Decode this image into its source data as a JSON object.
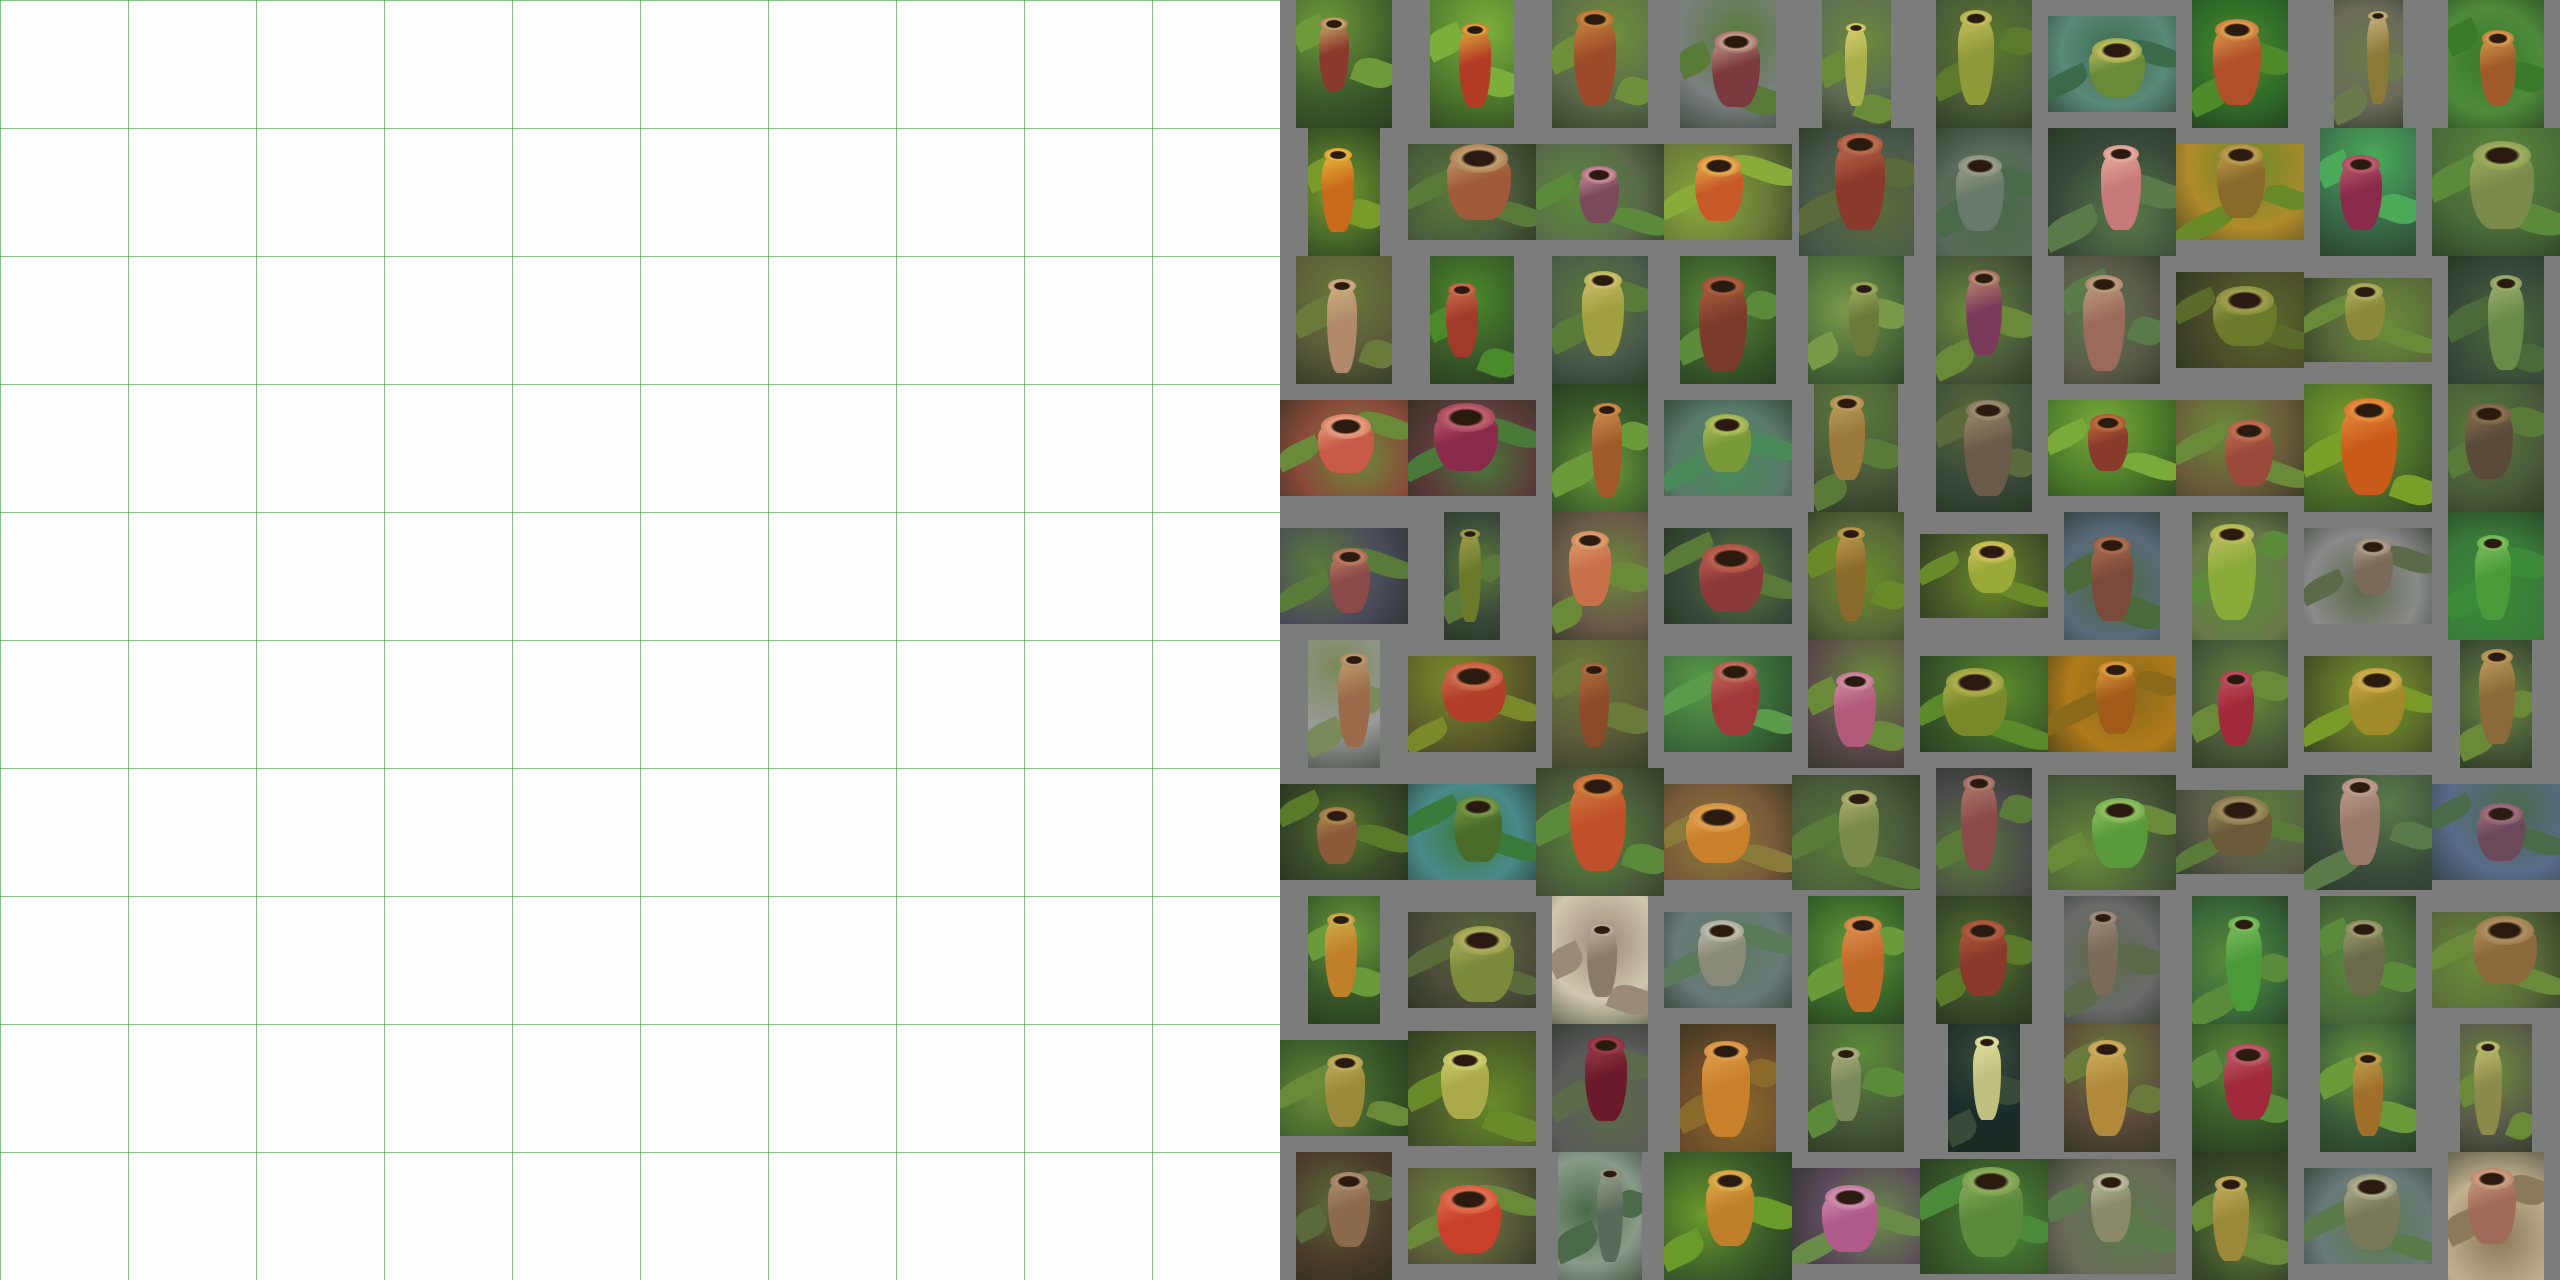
{
  "image": {
    "left_panel": "blank-white-grid",
    "grid_color": "#5aa35a",
    "right_panel": "pitcher-plant-photo-collage",
    "collage_background": "#7c7c7c"
  },
  "photos": [
    {
      "w": 0.75,
      "h": 1.0,
      "bg": "#3d5a2a",
      "p": "#8a3a2a",
      "m": "#c9b070",
      "l": "#6e9a3a",
      "ax": "c",
      "ay": "c"
    },
    {
      "w": 0.66,
      "h": 1.0,
      "bg": "#4f7a2e",
      "p": "#b23b25",
      "m": "#e0b040",
      "l": "#7cae3c",
      "ax": "c",
      "ay": "c"
    },
    {
      "w": 0.75,
      "h": 1.0,
      "bg": "#5b6b4a",
      "p": "#9c4b2a",
      "m": "#c98a40",
      "l": "#6f8f3a",
      "ax": "c",
      "ay": "c"
    },
    {
      "w": 0.75,
      "h": 1.0,
      "bg": "#7a8080",
      "p": "#7b3a40",
      "m": "#c9a090",
      "l": "#5a7a3a",
      "ax": "c",
      "ay": "c"
    },
    {
      "w": 0.54,
      "h": 1.0,
      "bg": "#5e6b55",
      "p": "#a7b04a",
      "m": "#d8d070",
      "l": "#6b8a3a",
      "ax": "c",
      "ay": "c"
    },
    {
      "w": 0.75,
      "h": 1.0,
      "bg": "#4a5b38",
      "p": "#8e9a3a",
      "m": "#c8c060",
      "l": "#5d7a2c",
      "ax": "c",
      "ay": "c"
    },
    {
      "w": 1.0,
      "h": 0.75,
      "bg": "#5a8a7a",
      "p": "#6a8a3a",
      "m": "#c0c060",
      "l": "#3b6a4a",
      "ax": "c",
      "ay": "c"
    },
    {
      "w": 0.75,
      "h": 1.0,
      "bg": "#2f6a2a",
      "p": "#b0502a",
      "m": "#e0a050",
      "l": "#4e8a2a",
      "ax": "c",
      "ay": "c"
    },
    {
      "w": 0.54,
      "h": 1.0,
      "bg": "#6a6a5a",
      "p": "#8a7a3a",
      "m": "#c8b080",
      "l": "#6a7a4a",
      "ax": "c",
      "ay": "c"
    },
    {
      "w": 0.75,
      "h": 1.0,
      "bg": "#4e8a3a",
      "p": "#a05a2a",
      "m": "#d8a050",
      "l": "#3a7a2a",
      "ax": "c",
      "ay": "c"
    },
    {
      "w": 0.56,
      "h": 1.0,
      "bg": "#4a6a2a",
      "p": "#c86a1a",
      "m": "#e8c040",
      "l": "#7a9a2a",
      "ax": "c",
      "ay": "c"
    },
    {
      "w": 1.0,
      "h": 0.75,
      "bg": "#4a5a3a",
      "p": "#a05a3a",
      "m": "#c0a070",
      "l": "#5a7a3a",
      "ax": "c",
      "ay": "c"
    },
    {
      "w": 1.0,
      "h": 0.75,
      "bg": "#5a6a4a",
      "p": "#7a4a5a",
      "m": "#d090a0",
      "l": "#5a8a3a",
      "ax": "c",
      "ay": "c"
    },
    {
      "w": 1.0,
      "h": 0.75,
      "bg": "#6a7a3a",
      "p": "#c85a2a",
      "m": "#e8b050",
      "l": "#8aaa3a",
      "ax": "c",
      "ay": "c"
    },
    {
      "w": 0.9,
      "h": 1.0,
      "bg": "#4a5a4a",
      "p": "#8a3a2a",
      "m": "#c07050",
      "l": "#5a6a3a",
      "ax": "c",
      "ay": "c"
    },
    {
      "w": 0.75,
      "h": 1.0,
      "bg": "#5a6a5a",
      "p": "#6a7a6a",
      "m": "#9aa090",
      "l": "#4a6a4a",
      "ax": "c",
      "ay": "c"
    },
    {
      "w": 1.0,
      "h": 1.0,
      "bg": "#3a4a3a",
      "p": "#c87a7a",
      "m": "#e8b0a0",
      "l": "#5a7a4a",
      "ax": "c",
      "ay": "c"
    },
    {
      "w": 1.0,
      "h": 0.75,
      "bg": "#b08a2a",
      "p": "#8a6a2a",
      "m": "#c0a050",
      "l": "#6a8a2a",
      "ax": "c",
      "ay": "c"
    },
    {
      "w": 0.75,
      "h": 1.0,
      "bg": "#3a6a4a",
      "p": "#8a2a4a",
      "m": "#c06070",
      "l": "#4aaa5a",
      "ax": "c",
      "ay": "c"
    },
    {
      "w": 1.0,
      "h": 1.0,
      "bg": "#4a6a3a",
      "p": "#7a8a4a",
      "m": "#a0b060",
      "l": "#5a8a3a",
      "ax": "c",
      "ay": "c"
    },
    {
      "w": 0.75,
      "h": 1.0,
      "bg": "#5a5a3a",
      "p": "#b08a6a",
      "m": "#d0b080",
      "l": "#6a7a3a",
      "ax": "c",
      "ay": "c"
    },
    {
      "w": 0.66,
      "h": 1.0,
      "bg": "#3a5a2a",
      "p": "#a03a2a",
      "m": "#d07050",
      "l": "#4a8a2a",
      "ax": "c",
      "ay": "c"
    },
    {
      "w": 0.75,
      "h": 1.0,
      "bg": "#4a5a4a",
      "p": "#a0a040",
      "m": "#d0c070",
      "l": "#5a7a3a",
      "ax": "c",
      "ay": "c"
    },
    {
      "w": 0.75,
      "h": 1.0,
      "bg": "#3a5a2a",
      "p": "#7a3a2a",
      "m": "#b06040",
      "l": "#5a8a3a",
      "ax": "c",
      "ay": "c"
    },
    {
      "w": 0.75,
      "h": 1.0,
      "bg": "#4a6a3a",
      "p": "#6a7a3a",
      "m": "#a0b060",
      "l": "#7a9a4a",
      "ax": "c",
      "ay": "c"
    },
    {
      "w": 0.75,
      "h": 1.0,
      "bg": "#4a5a3a",
      "p": "#7a3a5a",
      "m": "#c09070",
      "l": "#6a8a3a",
      "ax": "c",
      "ay": "c"
    },
    {
      "w": 0.75,
      "h": 1.0,
      "bg": "#5a5a4a",
      "p": "#9a6a5a",
      "m": "#c0a080",
      "l": "#5a7a4a",
      "ax": "c",
      "ay": "c"
    },
    {
      "w": 1.0,
      "h": 0.75,
      "bg": "#4a4a2a",
      "p": "#6a7a2a",
      "m": "#a0a050",
      "l": "#5a6a2a",
      "ax": "c",
      "ay": "c"
    },
    {
      "w": 1.0,
      "h": 0.66,
      "bg": "#5a6a3a",
      "p": "#8a8a3a",
      "m": "#b0b060",
      "l": "#6a8a3a",
      "ax": "c",
      "ay": "c"
    },
    {
      "w": 0.75,
      "h": 1.0,
      "bg": "#3a4a3a",
      "p": "#6a8a4a",
      "m": "#a0b070",
      "l": "#4a6a3a",
      "ax": "c",
      "ay": "c"
    },
    {
      "w": 1.0,
      "h": 0.75,
      "bg": "#8a4a3a",
      "p": "#c85a4a",
      "m": "#e8a080",
      "l": "#6a8a3a",
      "ax": "c",
      "ay": "c"
    },
    {
      "w": 1.0,
      "h": 0.75,
      "bg": "#5a3a3a",
      "p": "#8a2a4a",
      "m": "#c06070",
      "l": "#4a7a3a",
      "ax": "c",
      "ay": "c"
    },
    {
      "w": 0.75,
      "h": 1.0,
      "bg": "#3a5a2a",
      "p": "#a05a2a",
      "m": "#d09050",
      "l": "#6a9a3a",
      "ax": "c",
      "ay": "c"
    },
    {
      "w": 1.0,
      "h": 0.75,
      "bg": "#5a7a6a",
      "p": "#7a9a3a",
      "m": "#b0c060",
      "l": "#4a8a5a",
      "ax": "c",
      "ay": "c"
    },
    {
      "w": 0.66,
      "h": 1.0,
      "bg": "#4a5a3a",
      "p": "#9a7a3a",
      "m": "#c0a060",
      "l": "#5a7a3a",
      "ax": "c",
      "ay": "c"
    },
    {
      "w": 0.75,
      "h": 1.0,
      "bg": "#3a4a3a",
      "p": "#6a5a4a",
      "m": "#a09070",
      "l": "#5a6a3a",
      "ax": "c",
      "ay": "c"
    },
    {
      "w": 1.0,
      "h": 0.75,
      "bg": "#4a7a2a",
      "p": "#8a3a2a",
      "m": "#c07040",
      "l": "#7aaa3a",
      "ax": "c",
      "ay": "c"
    },
    {
      "w": 1.0,
      "h": 0.75,
      "bg": "#6a5a3a",
      "p": "#9a4a3a",
      "m": "#c07050",
      "l": "#6a8a3a",
      "ax": "c",
      "ay": "c"
    },
    {
      "w": 1.0,
      "h": 1.0,
      "bg": "#4a6a2a",
      "p": "#c85a1a",
      "m": "#e89040",
      "l": "#7aa02a",
      "ax": "c",
      "ay": "c"
    },
    {
      "w": 0.75,
      "h": 1.0,
      "bg": "#4a5a3a",
      "p": "#5a4a3a",
      "m": "#8a7050",
      "l": "#5a7a3a",
      "ax": "c",
      "ay": "c"
    },
    {
      "w": 1.0,
      "h": 0.75,
      "bg": "#4a4a5a",
      "p": "#8a4a4a",
      "m": "#c08060",
      "l": "#5a7a3a",
      "ax": "c",
      "ay": "c"
    },
    {
      "w": 0.44,
      "h": 1.0,
      "bg": "#3a4a3a",
      "p": "#6a7a2a",
      "m": "#a0a050",
      "l": "#5a7a3a",
      "ax": "c",
      "ay": "c"
    },
    {
      "w": 0.75,
      "h": 1.0,
      "bg": "#6a5a4a",
      "p": "#c8704a",
      "m": "#e0a070",
      "l": "#6a8a3a",
      "ax": "c",
      "ay": "c"
    },
    {
      "w": 1.0,
      "h": 0.75,
      "bg": "#3a4a3a",
      "p": "#8a3a3a",
      "m": "#c06050",
      "l": "#5a7a3a",
      "ax": "c",
      "ay": "c"
    },
    {
      "w": 0.75,
      "h": 1.0,
      "bg": "#5a6a3a",
      "p": "#8a6a2a",
      "m": "#c0a050",
      "l": "#6a8a2a",
      "ax": "c",
      "ay": "c"
    },
    {
      "w": 1.0,
      "h": 0.66,
      "bg": "#4a5a2a",
      "p": "#9aaa3a",
      "m": "#d0c060",
      "l": "#6a8a2a",
      "ax": "c",
      "ay": "c"
    },
    {
      "w": 0.75,
      "h": 1.0,
      "bg": "#5a6a7a",
      "p": "#7a4a3a",
      "m": "#b07050",
      "l": "#4a6a3a",
      "ax": "c",
      "ay": "c"
    },
    {
      "w": 0.75,
      "h": 1.0,
      "bg": "#6a7a4a",
      "p": "#8aaa3a",
      "m": "#c0c060",
      "l": "#5a8a3a",
      "ax": "c",
      "ay": "c"
    },
    {
      "w": 1.0,
      "h": 0.75,
      "bg": "#8a8a8a",
      "p": "#7a6a5a",
      "m": "#b0a090",
      "l": "#5a6a4a",
      "ax": "c",
      "ay": "c"
    },
    {
      "w": 0.75,
      "h": 1.0,
      "bg": "#3a7a3a",
      "p": "#4a9a3a",
      "m": "#80c060",
      "l": "#3a8a3a",
      "ax": "c",
      "ay": "c"
    },
    {
      "w": 0.56,
      "h": 1.0,
      "bg": "#9a9a9a",
      "p": "#9a6a4a",
      "m": "#c0a070",
      "l": "#7a8a5a",
      "ax": "c",
      "ay": "c"
    },
    {
      "w": 1.0,
      "h": 0.75,
      "bg": "#5a5a2a",
      "p": "#b0402a",
      "m": "#d07050",
      "l": "#7a8a2a",
      "ax": "c",
      "ay": "c"
    },
    {
      "w": 0.75,
      "h": 1.0,
      "bg": "#5a5a3a",
      "p": "#8a4a2a",
      "m": "#b07040",
      "l": "#6a7a3a",
      "ax": "c",
      "ay": "c"
    },
    {
      "w": 1.0,
      "h": 0.75,
      "bg": "#3a6a3a",
      "p": "#a03a3a",
      "m": "#c07060",
      "l": "#5a9a4a",
      "ax": "c",
      "ay": "c"
    },
    {
      "w": 0.75,
      "h": 1.0,
      "bg": "#5a4a4a",
      "p": "#b05a7a",
      "m": "#d090a0",
      "l": "#6a8a3a",
      "ax": "c",
      "ay": "c"
    },
    {
      "w": 1.0,
      "h": 0.75,
      "bg": "#3a5a2a",
      "p": "#7a8a2a",
      "m": "#b0b050",
      "l": "#5a8a2a",
      "ax": "c",
      "ay": "c"
    },
    {
      "w": 1.0,
      "h": 0.75,
      "bg": "#b07a1a",
      "p": "#a05a1a",
      "m": "#e0a040",
      "l": "#8a6a1a",
      "ax": "c",
      "ay": "c"
    },
    {
      "w": 0.75,
      "h": 1.0,
      "bg": "#4a5a3a",
      "p": "#a02a3a",
      "m": "#c05060",
      "l": "#6a8a3a",
      "ax": "c",
      "ay": "c"
    },
    {
      "w": 1.0,
      "h": 0.75,
      "bg": "#5a6a2a",
      "p": "#a08a2a",
      "m": "#d0b050",
      "l": "#7a9a2a",
      "ax": "c",
      "ay": "c"
    },
    {
      "w": 0.56,
      "h": 1.0,
      "bg": "#4a5a3a",
      "p": "#8a6a3a",
      "m": "#c0a060",
      "l": "#6a8a3a",
      "ax": "c",
      "ay": "c"
    },
    {
      "w": 1.0,
      "h": 0.75,
      "bg": "#3a4a2a",
      "p": "#8a5a3a",
      "m": "#b08a50",
      "l": "#5a7a2a",
      "ax": "c",
      "ay": "c"
    },
    {
      "w": 1.0,
      "h": 0.75,
      "bg": "#4a8a8a",
      "p": "#4a6a2a",
      "m": "#7a9a4a",
      "l": "#3a7a3a",
      "ax": "c",
      "ay": "c"
    },
    {
      "w": 1.0,
      "h": 1.0,
      "bg": "#4a5a3a",
      "p": "#c0502a",
      "m": "#d08040",
      "l": "#5a8a3a",
      "ax": "c",
      "ay": "c"
    },
    {
      "w": 1.0,
      "h": 0.75,
      "bg": "#7a5a3a",
      "p": "#c8802a",
      "m": "#e0a050",
      "l": "#8a7a3a",
      "ax": "c",
      "ay": "c"
    },
    {
      "w": 1.0,
      "h": 0.9,
      "bg": "#4a5a3a",
      "p": "#7a8a4a",
      "m": "#b0b070",
      "l": "#5a7a3a",
      "ax": "c",
      "ay": "c"
    },
    {
      "w": 0.75,
      "h": 1.0,
      "bg": "#4a4a4a",
      "p": "#8a4a4a",
      "m": "#b08070",
      "l": "#5a7a3a",
      "ax": "c",
      "ay": "c"
    },
    {
      "w": 1.0,
      "h": 0.9,
      "bg": "#4a5a3a",
      "p": "#5a9a3a",
      "m": "#90c060",
      "l": "#6a8a3a",
      "ax": "c",
      "ay": "c"
    },
    {
      "w": 1.0,
      "h": 0.66,
      "bg": "#5a5a4a",
      "p": "#6a5a3a",
      "m": "#a09060",
      "l": "#5a7a3a",
      "ax": "c",
      "ay": "c"
    },
    {
      "w": 1.0,
      "h": 0.9,
      "bg": "#3a4a3a",
      "p": "#9a7a6a",
      "m": "#c0a090",
      "l": "#5a7a4a",
      "ax": "c",
      "ay": "c"
    },
    {
      "w": 1.0,
      "h": 0.75,
      "bg": "#5a6a8a",
      "p": "#6a4a5a",
      "m": "#a07080",
      "l": "#4a6a4a",
      "ax": "c",
      "ay": "c"
    },
    {
      "w": 0.56,
      "h": 1.0,
      "bg": "#3a5a2a",
      "p": "#c0802a",
      "m": "#d0b050",
      "l": "#6a9a3a",
      "ax": "c",
      "ay": "c"
    },
    {
      "w": 1.0,
      "h": 0.75,
      "bg": "#4a4a3a",
      "p": "#7a8a3a",
      "m": "#b0b060",
      "l": "#5a6a3a",
      "ax": "c",
      "ay": "c"
    },
    {
      "w": 0.75,
      "h": 1.0,
      "bg": "#d0c8b0",
      "p": "#8a7a6a",
      "m": "#c0b0a0",
      "l": "#9a8a7a",
      "ax": "c",
      "ay": "c"
    },
    {
      "w": 1.0,
      "h": 0.75,
      "bg": "#6a7a7a",
      "p": "#8a8a7a",
      "m": "#c0c0b0",
      "l": "#5a7a5a",
      "ax": "c",
      "ay": "c"
    },
    {
      "w": 0.75,
      "h": 1.0,
      "bg": "#3a6a2a",
      "p": "#c06a2a",
      "m": "#e09050",
      "l": "#6a9a3a",
      "ax": "c",
      "ay": "c"
    },
    {
      "w": 0.75,
      "h": 1.0,
      "bg": "#3a4a2a",
      "p": "#8a3a2a",
      "m": "#b06040",
      "l": "#5a7a2a",
      "ax": "c",
      "ay": "c"
    },
    {
      "w": 0.75,
      "h": 1.0,
      "bg": "#6a6a6a",
      "p": "#7a6a5a",
      "m": "#a09080",
      "l": "#5a6a4a",
      "ax": "c",
      "ay": "c"
    },
    {
      "w": 0.75,
      "h": 1.0,
      "bg": "#3a6a3a",
      "p": "#4a9a3a",
      "m": "#80c060",
      "l": "#5a8a3a",
      "ax": "c",
      "ay": "c"
    },
    {
      "w": 0.75,
      "h": 1.0,
      "bg": "#4a6a3a",
      "p": "#6a6a4a",
      "m": "#a0a070",
      "l": "#5a8a3a",
      "ax": "c",
      "ay": "c"
    },
    {
      "w": 1.0,
      "h": 0.75,
      "bg": "#5a6a3a",
      "p": "#8a6a3a",
      "m": "#b09060",
      "l": "#6a8a3a",
      "ax": "c",
      "ay": "c"
    },
    {
      "w": 1.0,
      "h": 0.75,
      "bg": "#3a5a2a",
      "p": "#9a8a3a",
      "m": "#c0b060",
      "l": "#6a8a3a",
      "ax": "c",
      "ay": "c"
    },
    {
      "w": 1.0,
      "h": 0.9,
      "bg": "#4a5a2a",
      "p": "#aaaa4a",
      "m": "#d0d070",
      "l": "#6a8a2a",
      "ax": "c",
      "ay": "c"
    },
    {
      "w": 0.75,
      "h": 1.0,
      "bg": "#5a5a5a",
      "p": "#6a1a2a",
      "m": "#a04050",
      "l": "#5a6a4a",
      "ax": "c",
      "ay": "c"
    },
    {
      "w": 0.75,
      "h": 1.0,
      "bg": "#6a4a2a",
      "p": "#c8802a",
      "m": "#e0a050",
      "l": "#8a6a2a",
      "ax": "c",
      "ay": "c"
    },
    {
      "w": 0.75,
      "h": 1.0,
      "bg": "#4a5a3a",
      "p": "#7a8a5a",
      "m": "#b0b080",
      "l": "#5a8a3a",
      "ax": "c",
      "ay": "c"
    },
    {
      "w": 0.56,
      "h": 1.0,
      "bg": "#1a2a2a",
      "p": "#c0c080",
      "m": "#e0e0a0",
      "l": "#3a4a3a",
      "ax": "c",
      "ay": "c"
    },
    {
      "w": 0.75,
      "h": 1.0,
      "bg": "#5a4a3a",
      "p": "#b08a3a",
      "m": "#d0b060",
      "l": "#6a7a3a",
      "ax": "c",
      "ay": "c"
    },
    {
      "w": 0.75,
      "h": 1.0,
      "bg": "#3a5a2a",
      "p": "#a02a3a",
      "m": "#c06070",
      "l": "#5a8a3a",
      "ax": "c",
      "ay": "c"
    },
    {
      "w": 0.75,
      "h": 1.0,
      "bg": "#3a5a3a",
      "p": "#a0702a",
      "m": "#c0a050",
      "l": "#6a9a3a",
      "ax": "c",
      "ay": "c"
    },
    {
      "w": 0.56,
      "h": 1.0,
      "bg": "#5a5a4a",
      "p": "#8a8a4a",
      "m": "#c0c070",
      "l": "#6a8a3a",
      "ax": "c",
      "ay": "c"
    },
    {
      "w": 0.75,
      "h": 1.0,
      "bg": "#4a3a2a",
      "p": "#8a6a4a",
      "m": "#b09070",
      "l": "#5a6a3a",
      "ax": "c",
      "ay": "c"
    },
    {
      "w": 1.0,
      "h": 0.75,
      "bg": "#5a5a3a",
      "p": "#c8402a",
      "m": "#e07050",
      "l": "#6a8a3a",
      "ax": "c",
      "ay": "c"
    },
    {
      "w": 0.66,
      "h": 1.0,
      "bg": "#8a9a8a",
      "p": "#5a6a5a",
      "m": "#9aa090",
      "l": "#4a6a4a",
      "ax": "c",
      "ay": "c"
    },
    {
      "w": 1.0,
      "h": 1.0,
      "bg": "#3a5a2a",
      "p": "#c0802a",
      "m": "#e0b050",
      "l": "#6a9a2a",
      "ax": "c",
      "ay": "c"
    },
    {
      "w": 1.0,
      "h": 0.75,
      "bg": "#5a4a5a",
      "p": "#b05a8a",
      "m": "#d090b0",
      "l": "#6a8a4a",
      "ax": "c",
      "ay": "c"
    },
    {
      "w": 1.0,
      "h": 0.9,
      "bg": "#3a5a2a",
      "p": "#5a8a3a",
      "m": "#90b060",
      "l": "#4a8a3a",
      "ax": "c",
      "ay": "c"
    },
    {
      "w": 1.0,
      "h": 0.9,
      "bg": "#6a6a5a",
      "p": "#8a8a6a",
      "m": "#c0c0a0",
      "l": "#5a7a4a",
      "ax": "c",
      "ay": "c"
    },
    {
      "w": 0.75,
      "h": 1.0,
      "bg": "#3a4a2a",
      "p": "#9a8a3a",
      "m": "#c0b060",
      "l": "#6a8a3a",
      "ax": "c",
      "ay": "c"
    },
    {
      "w": 1.0,
      "h": 0.75,
      "bg": "#6a7a7a",
      "p": "#7a7a5a",
      "m": "#b0b090",
      "l": "#5a7a4a",
      "ax": "c",
      "ay": "c"
    },
    {
      "w": 0.75,
      "h": 1.0,
      "bg": "#c0b090",
      "p": "#a06a5a",
      "m": "#d0a080",
      "l": "#8a7a5a",
      "ax": "c",
      "ay": "c"
    }
  ]
}
